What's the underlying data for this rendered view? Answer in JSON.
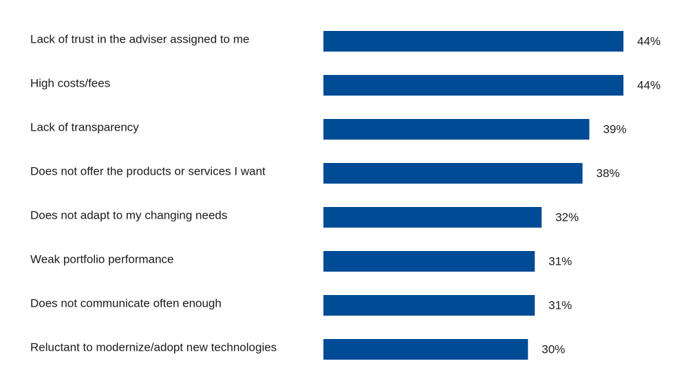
{
  "chart_data": {
    "type": "bar",
    "orientation": "horizontal",
    "title": "",
    "xlabel": "",
    "ylabel": "",
    "categories": [
      "Lack of trust in the adviser assigned to me",
      "High costs/fees",
      "Lack of transparency",
      "Does not offer the products or services I want",
      "Does not adapt to my changing needs",
      "Weak portfolio performance",
      "Does not communicate often enough",
      "Reluctant to modernize/adopt new technologies"
    ],
    "values": [
      44,
      44,
      39,
      38,
      32,
      31,
      31,
      30
    ],
    "value_labels": [
      "44%",
      "44%",
      "39%",
      "38%",
      "32%",
      "31%",
      "31%",
      "30%"
    ],
    "xlim": [
      0,
      44
    ],
    "grid": false,
    "legend": "none",
    "bar_color": "#004b96"
  }
}
